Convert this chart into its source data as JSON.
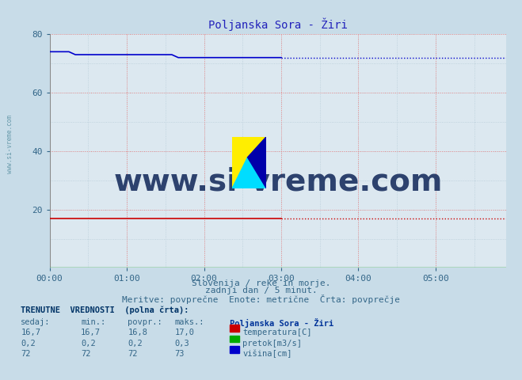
{
  "title": "Poljanska Sora - Žiri",
  "title_color": "#2222bb",
  "bg_color": "#c8dce8",
  "plot_bg_color": "#dce8f0",
  "xlabel_line1": "Slovenija / reke in morje.",
  "xlabel_line2": "zadnji dan / 5 minut.",
  "xlabel_line3": "Meritve: povprečne  Enote: metrične  Črta: povprečje",
  "watermark": "www.si-vreme.com",
  "watermark_color": "#1a3060",
  "ylim": [
    0,
    80
  ],
  "yticks": [
    20,
    40,
    60,
    80
  ],
  "n_points": 72,
  "temp_color": "#cc0000",
  "pretok_color": "#00aa00",
  "visina_color": "#0000cc",
  "xtick_labels": [
    "00:00",
    "01:00",
    "02:00",
    "03:00",
    "04:00",
    "05:00"
  ],
  "xtick_positions": [
    0,
    12,
    24,
    36,
    48,
    60
  ],
  "table_header": "TRENUTNE  VREDNOSTI  (polna črta):",
  "col_sedaj": "sedaj:",
  "col_min": "min.:",
  "col_povpr": "povpr.:",
  "col_maks": "maks.:",
  "station_name": "Poljanska Sora - Žiri",
  "temp_sedaj": "16,7",
  "temp_min": "16,7",
  "temp_povpr": "16,8",
  "temp_maks": "17,0",
  "temp_label": "temperatura[C]",
  "pretok_sedaj": "0,2",
  "pretok_min": "0,2",
  "pretok_povpr": "0,2",
  "pretok_maks": "0,3",
  "pretok_label": "pretok[m3/s]",
  "visina_sedaj": "72",
  "visina_min": "72",
  "visina_povpr": "72",
  "visina_maks": "73",
  "visina_label": "višina[cm]",
  "side_text": "www.si-vreme.com",
  "side_text_color": "#6699aa"
}
